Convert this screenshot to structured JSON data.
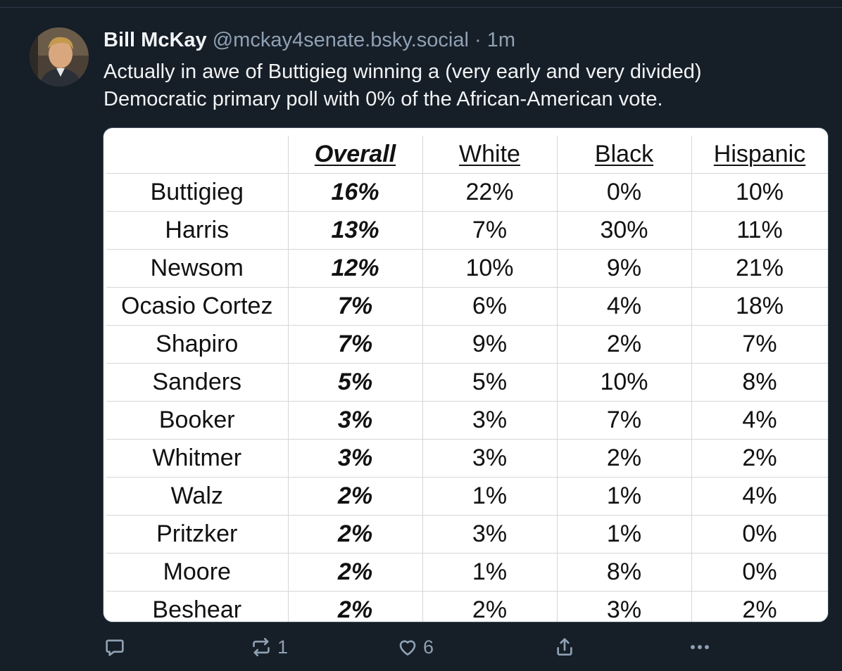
{
  "post": {
    "author_name": "Bill McKay",
    "author_handle": "@mckay4senate.bsky.social",
    "separator": "·",
    "time": "1m",
    "text_lines": [
      "Actually in awe of Buttigieg winning a (very early and very divided)",
      "Democratic primary poll with 0% of the African-American vote."
    ]
  },
  "poll_table": {
    "headers": [
      "",
      "Overall",
      "White",
      "Black",
      "Hispanic"
    ],
    "rows": [
      [
        "Buttigieg",
        "16%",
        "22%",
        "0%",
        "10%"
      ],
      [
        "Harris",
        "13%",
        "7%",
        "30%",
        "11%"
      ],
      [
        "Newsom",
        "12%",
        "10%",
        "9%",
        "21%"
      ],
      [
        "Ocasio Cortez",
        "7%",
        "6%",
        "4%",
        "18%"
      ],
      [
        "Shapiro",
        "7%",
        "9%",
        "2%",
        "7%"
      ],
      [
        "Sanders",
        "5%",
        "5%",
        "10%",
        "8%"
      ],
      [
        "Booker",
        "3%",
        "3%",
        "7%",
        "4%"
      ],
      [
        "Whitmer",
        "3%",
        "3%",
        "2%",
        "2%"
      ],
      [
        "Walz",
        "2%",
        "1%",
        "1%",
        "4%"
      ],
      [
        "Pritzker",
        "2%",
        "3%",
        "1%",
        "0%"
      ],
      [
        "Moore",
        "2%",
        "1%",
        "8%",
        "0%"
      ],
      [
        "Beshear",
        "2%",
        "2%",
        "3%",
        "2%"
      ]
    ]
  },
  "actions": {
    "reply": {
      "icon": "reply-icon",
      "count": ""
    },
    "repost": {
      "icon": "repost-icon",
      "count": "1"
    },
    "like": {
      "icon": "heart-icon",
      "count": "6"
    },
    "share": {
      "icon": "share-icon"
    },
    "more": {
      "icon": "more-icon"
    }
  },
  "colors": {
    "background": "#161e27",
    "text": "#f1f3f5",
    "muted": "#8fa1b4"
  }
}
